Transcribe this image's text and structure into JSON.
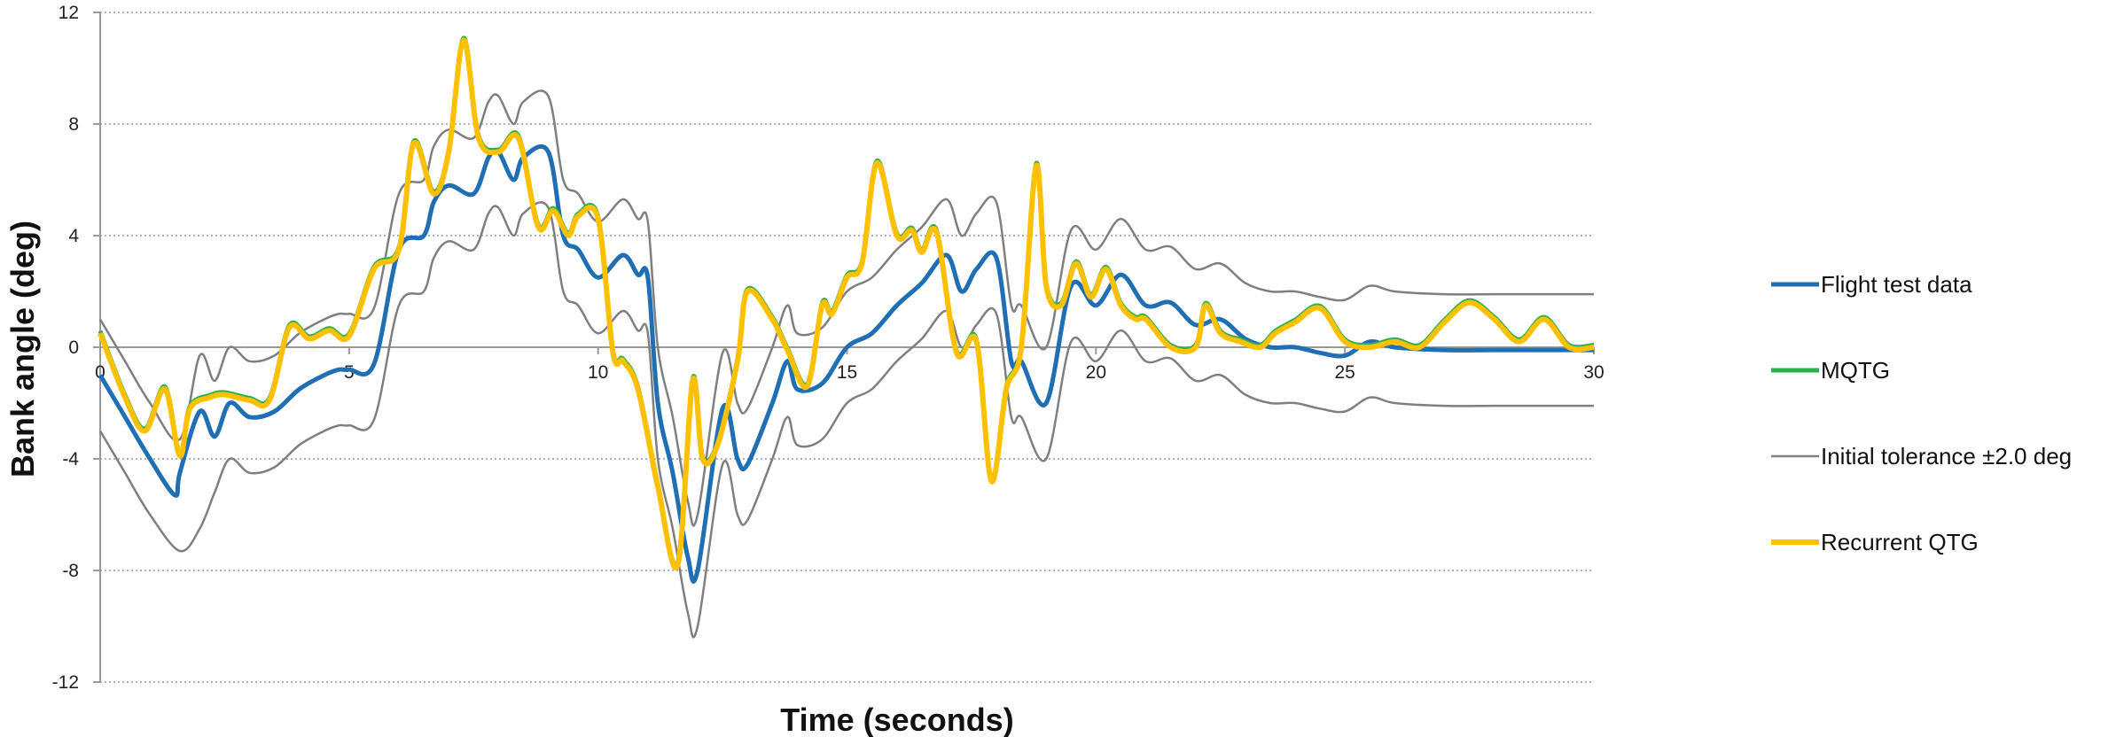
{
  "chart_data": {
    "type": "line",
    "title": "",
    "xlabel": "Time  (seconds)",
    "ylabel": "Bank angle  (deg)",
    "xlim": [
      0,
      30
    ],
    "ylim": [
      -12,
      12
    ],
    "x_ticks": [
      0,
      5,
      10,
      15,
      20,
      25,
      30
    ],
    "y_ticks": [
      -12,
      -8,
      -4,
      0,
      4,
      8,
      12
    ],
    "grid": "horizontal dotted",
    "legend_position": "right",
    "series": [
      {
        "name": "Flight test data",
        "color": "#1f6fb4",
        "width": 5,
        "x": [
          0,
          0.5,
          1.0,
          1.5,
          1.6,
          2.0,
          2.3,
          2.6,
          3.0,
          3.5,
          4.0,
          4.5,
          4.8,
          5.0,
          5.5,
          6.0,
          6.5,
          6.7,
          7.0,
          7.5,
          7.8,
          8.0,
          8.3,
          8.5,
          9.0,
          9.3,
          9.6,
          10.0,
          10.5,
          10.8,
          11.0,
          11.2,
          11.5,
          11.8,
          12.0,
          12.5,
          12.8,
          13.0,
          13.5,
          13.8,
          14.0,
          14.5,
          15.0,
          15.5,
          16.0,
          16.5,
          17.0,
          17.3,
          17.6,
          18.0,
          18.3,
          18.5,
          19.0,
          19.5,
          20.0,
          20.5,
          21.0,
          21.5,
          22.0,
          22.5,
          23.0,
          23.5,
          24.0,
          24.5,
          25.0,
          25.5,
          26.0,
          27.0,
          28.0,
          29.0,
          30.0
        ],
        "y": [
          -1.0,
          -2.5,
          -4.0,
          -5.3,
          -4.5,
          -2.3,
          -3.2,
          -2.0,
          -2.5,
          -2.3,
          -1.5,
          -1.0,
          -0.8,
          -0.8,
          -0.6,
          3.5,
          4.0,
          5.2,
          5.8,
          5.5,
          6.8,
          7.0,
          6.0,
          6.8,
          7.0,
          4.0,
          3.5,
          2.5,
          3.3,
          2.6,
          2.5,
          -2.0,
          -4.5,
          -7.5,
          -8.0,
          -2.2,
          -4.0,
          -4.2,
          -2.0,
          -0.5,
          -1.5,
          -1.3,
          0.0,
          0.5,
          1.5,
          2.3,
          3.3,
          2.0,
          2.8,
          3.2,
          -0.5,
          -0.5,
          -2.0,
          2.2,
          1.5,
          2.6,
          1.5,
          1.6,
          0.8,
          1.0,
          0.3,
          0.0,
          0.0,
          -0.2,
          -0.3,
          0.2,
          0.0,
          -0.1,
          -0.1,
          -0.1,
          -0.1
        ]
      },
      {
        "name": "MQTG",
        "color": "#2db04b",
        "width": 5,
        "x": [
          0,
          0.5,
          0.9,
          1.3,
          1.6,
          1.8,
          2.2,
          2.5,
          3.0,
          3.4,
          3.8,
          4.2,
          4.6,
          5.0,
          5.5,
          6.0,
          6.3,
          6.7,
          7.0,
          7.3,
          7.6,
          8.0,
          8.4,
          8.8,
          9.1,
          9.4,
          9.6,
          10.0,
          10.3,
          10.5,
          10.8,
          11.2,
          11.6,
          11.9,
          12.1,
          12.4,
          12.8,
          13.0,
          13.5,
          13.8,
          14.2,
          14.5,
          14.7,
          15.0,
          15.3,
          15.6,
          16.0,
          16.3,
          16.5,
          16.8,
          17.2,
          17.6,
          17.9,
          18.2,
          18.5,
          18.8,
          19.0,
          19.3,
          19.6,
          19.9,
          20.2,
          20.5,
          20.8,
          21.0,
          21.5,
          22.0,
          22.2,
          22.5,
          22.9,
          23.3,
          23.6,
          24.0,
          24.5,
          25.0,
          25.5,
          26.0,
          26.5,
          27.0,
          27.5,
          28.0,
          28.5,
          29.0,
          29.5,
          30.0
        ],
        "y": [
          0.5,
          -1.8,
          -3.0,
          -1.5,
          -3.9,
          -2.2,
          -1.8,
          -1.7,
          -1.9,
          -1.9,
          0.7,
          0.3,
          0.6,
          0.4,
          2.8,
          3.5,
          7.3,
          5.5,
          7.0,
          11.0,
          7.5,
          7.0,
          7.5,
          4.3,
          4.9,
          4.0,
          4.7,
          4.6,
          -0.2,
          -0.5,
          -1.5,
          -5.0,
          -7.8,
          -1.2,
          -4.0,
          -3.5,
          -0.5,
          2.0,
          1.0,
          -0.1,
          -1.4,
          1.5,
          1.2,
          2.5,
          3.0,
          6.6,
          4.0,
          4.2,
          3.4,
          4.1,
          -0.2,
          0.2,
          -4.8,
          -1.5,
          0.0,
          6.5,
          2.2,
          1.5,
          3.0,
          1.8,
          2.8,
          1.5,
          1.0,
          1.0,
          0.0,
          0.0,
          1.5,
          0.5,
          0.2,
          0.0,
          0.5,
          0.9,
          1.4,
          0.2,
          0.0,
          0.2,
          0.0,
          0.9,
          1.6,
          1.0,
          0.2,
          1.0,
          0.0,
          0.0
        ],
        "visual_offset": [
          0,
          0.08
        ]
      },
      {
        "name": "Initial tolerance  ±2.0 deg",
        "color": "#7f7f7f",
        "width": 2.5,
        "x": [
          0,
          0.5,
          1.0,
          1.6,
          2.0,
          2.3,
          2.6,
          3.0,
          3.5,
          4.0,
          4.5,
          4.8,
          5.0,
          5.5,
          6.0,
          6.5,
          6.7,
          7.0,
          7.5,
          7.8,
          8.0,
          8.3,
          8.5,
          9.0,
          9.3,
          9.6,
          10.0,
          10.5,
          10.8,
          11.0,
          11.2,
          11.5,
          11.8,
          12.0,
          12.5,
          12.8,
          13.0,
          13.5,
          13.8,
          14.0,
          14.5,
          15.0,
          15.5,
          16.0,
          16.5,
          17.0,
          17.3,
          17.6,
          18.0,
          18.3,
          18.5,
          19.0,
          19.5,
          20.0,
          20.5,
          21.0,
          21.5,
          22.0,
          22.5,
          23.0,
          23.5,
          24.0,
          24.5,
          25.0,
          25.5,
          26.0,
          27.0,
          28.0,
          29.0,
          30.0
        ],
        "upper": [
          1.0,
          -0.5,
          -2.0,
          -3.3,
          -0.3,
          -1.2,
          0.0,
          -0.5,
          -0.3,
          0.5,
          1.0,
          1.2,
          1.2,
          1.4,
          5.5,
          6.0,
          7.2,
          7.8,
          7.5,
          8.8,
          9.0,
          8.0,
          8.8,
          9.0,
          6.0,
          5.5,
          4.5,
          5.3,
          4.6,
          4.5,
          0.0,
          -2.5,
          -5.5,
          -6.0,
          -0.2,
          -2.0,
          -2.2,
          0.0,
          1.5,
          0.5,
          0.7,
          2.0,
          2.5,
          3.5,
          4.3,
          5.3,
          4.0,
          4.8,
          5.2,
          1.5,
          1.5,
          0.0,
          4.2,
          3.5,
          4.6,
          3.5,
          3.6,
          2.8,
          3.0,
          2.3,
          2.0,
          2.0,
          1.8,
          1.7,
          2.2,
          2.0,
          1.9,
          1.9,
          1.9,
          1.9
        ],
        "lower": [
          -3.0,
          -4.5,
          -6.0,
          -7.3,
          -6.5,
          -5.2,
          -4.0,
          -4.5,
          -4.3,
          -3.5,
          -3.0,
          -2.8,
          -2.8,
          -2.6,
          1.5,
          2.0,
          3.2,
          3.8,
          3.5,
          4.8,
          5.0,
          4.0,
          4.8,
          5.0,
          2.0,
          1.5,
          0.5,
          1.3,
          0.6,
          0.5,
          -4.0,
          -6.5,
          -9.5,
          -10.0,
          -4.2,
          -6.0,
          -6.2,
          -4.0,
          -2.5,
          -3.5,
          -3.3,
          -2.0,
          -1.5,
          -0.5,
          0.3,
          1.3,
          0.0,
          0.8,
          1.2,
          -2.5,
          -2.5,
          -4.0,
          0.2,
          -0.5,
          0.6,
          -0.5,
          -0.4,
          -1.2,
          -1.0,
          -1.7,
          -2.0,
          -2.0,
          -2.2,
          -2.3,
          -1.8,
          -2.0,
          -2.1,
          -2.1,
          -2.1,
          -2.1
        ]
      },
      {
        "name": "Recurrent QTG",
        "color": "#ffc000",
        "width": 6,
        "x": [
          0,
          0.5,
          0.9,
          1.3,
          1.6,
          1.8,
          2.2,
          2.5,
          3.0,
          3.4,
          3.8,
          4.2,
          4.6,
          5.0,
          5.5,
          6.0,
          6.3,
          6.7,
          7.0,
          7.3,
          7.6,
          8.0,
          8.4,
          8.8,
          9.1,
          9.4,
          9.6,
          10.0,
          10.3,
          10.5,
          10.8,
          11.2,
          11.6,
          11.9,
          12.1,
          12.4,
          12.8,
          13.0,
          13.5,
          13.8,
          14.2,
          14.5,
          14.7,
          15.0,
          15.3,
          15.6,
          16.0,
          16.3,
          16.5,
          16.8,
          17.2,
          17.6,
          17.9,
          18.2,
          18.5,
          18.8,
          19.0,
          19.3,
          19.6,
          19.9,
          20.2,
          20.5,
          20.8,
          21.0,
          21.5,
          22.0,
          22.2,
          22.5,
          22.9,
          23.3,
          23.6,
          24.0,
          24.5,
          25.0,
          25.5,
          26.0,
          26.5,
          27.0,
          27.5,
          28.0,
          28.5,
          29.0,
          29.5,
          30.0
        ],
        "y": [
          0.5,
          -1.8,
          -3.0,
          -1.5,
          -3.9,
          -2.2,
          -1.8,
          -1.7,
          -1.9,
          -1.9,
          0.7,
          0.3,
          0.6,
          0.4,
          2.8,
          3.5,
          7.3,
          5.5,
          7.0,
          11.0,
          7.5,
          7.0,
          7.5,
          4.3,
          4.9,
          4.0,
          4.7,
          4.6,
          -0.2,
          -0.5,
          -1.5,
          -5.0,
          -7.8,
          -1.2,
          -4.0,
          -3.5,
          -0.5,
          2.0,
          1.0,
          -0.1,
          -1.4,
          1.5,
          1.2,
          2.5,
          3.0,
          6.6,
          4.0,
          4.2,
          3.4,
          4.1,
          -0.2,
          0.2,
          -4.8,
          -1.5,
          0.0,
          6.5,
          2.2,
          1.5,
          3.0,
          1.8,
          2.8,
          1.5,
          1.0,
          1.0,
          0.0,
          0.0,
          1.5,
          0.5,
          0.2,
          0.0,
          0.5,
          0.9,
          1.4,
          0.2,
          0.0,
          0.2,
          0.0,
          0.9,
          1.6,
          1.0,
          0.2,
          1.0,
          0.0,
          0.0
        ]
      }
    ]
  }
}
